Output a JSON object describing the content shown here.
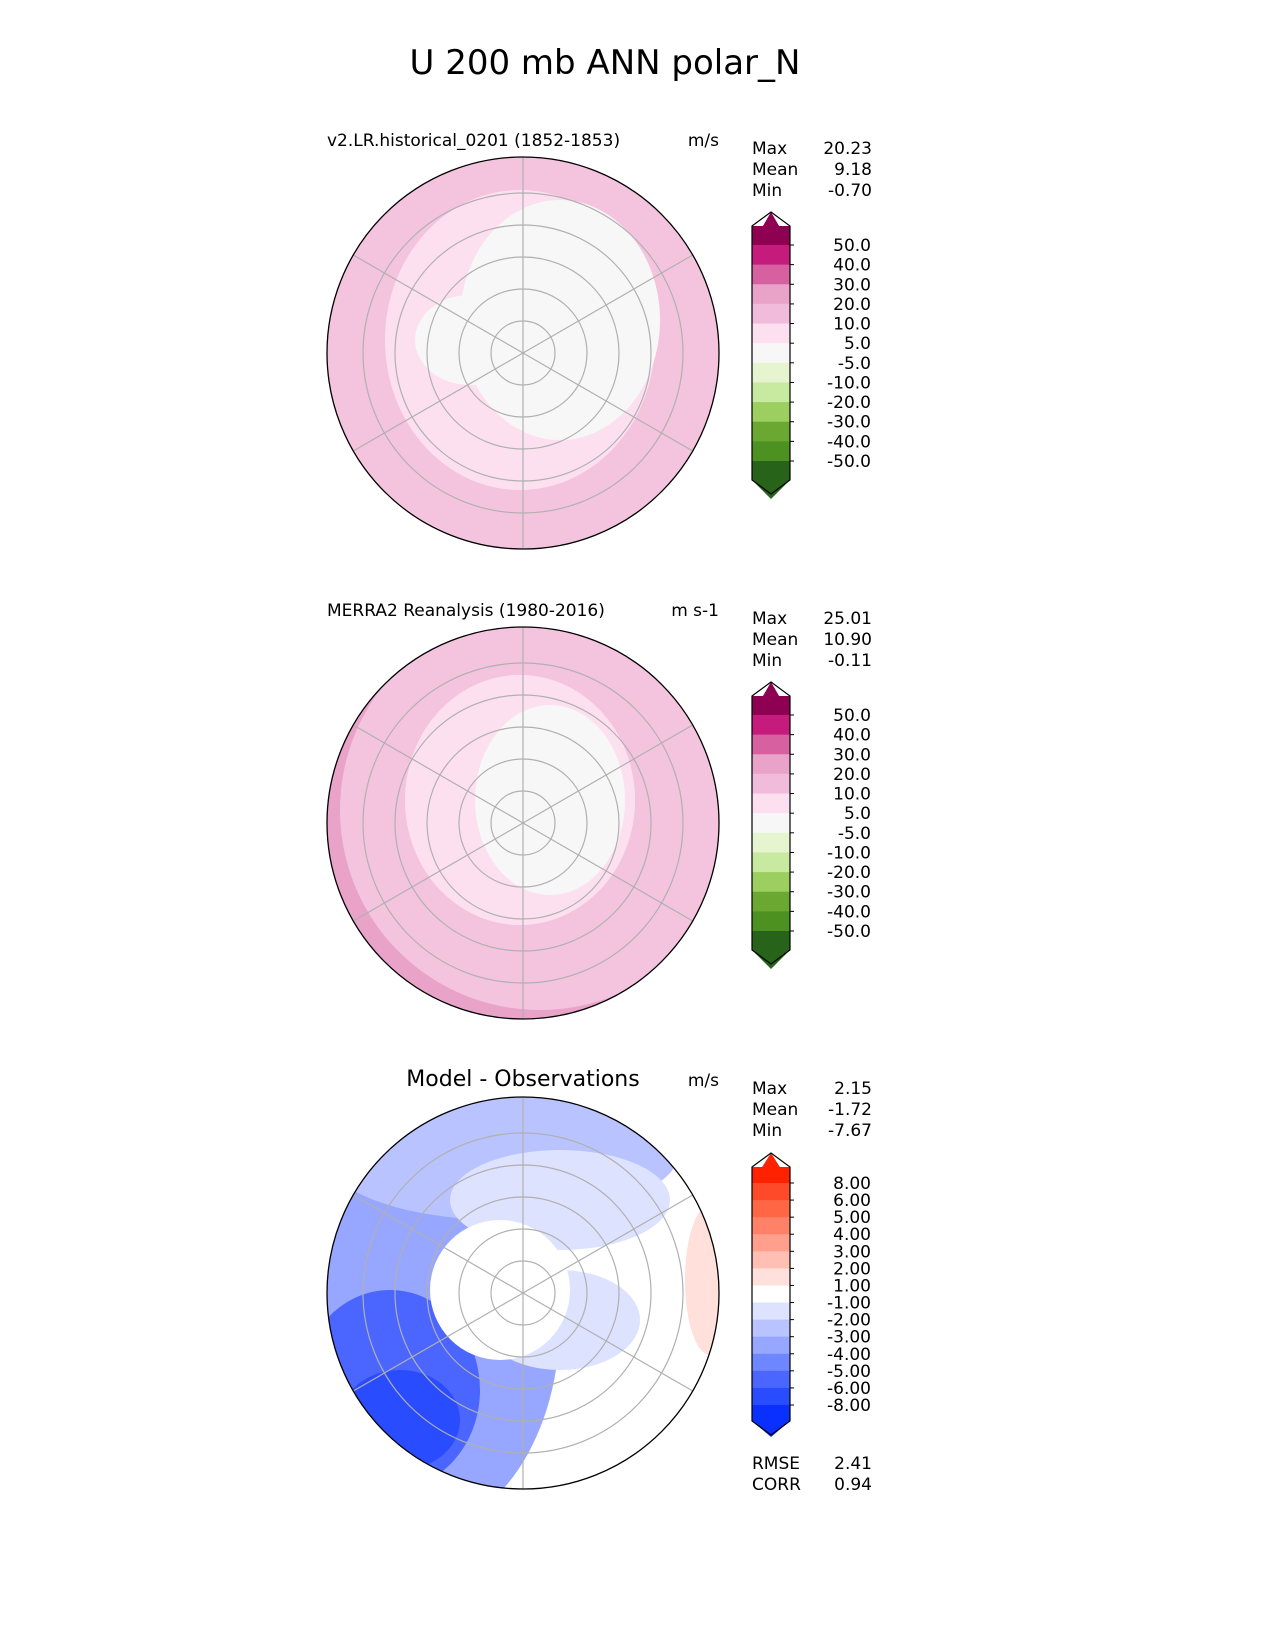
{
  "title": "U 200 mb ANN polar_N",
  "panels": [
    {
      "title": "v2.LR.historical_0201 (1852-1853)",
      "units": "m/s",
      "stats": [
        {
          "label": "Max",
          "value": "20.23"
        },
        {
          "label": "Mean",
          "value": "9.18"
        },
        {
          "label": "Min",
          "value": "-0.70"
        }
      ]
    },
    {
      "title": "MERRA2 Reanalysis (1980-2016)",
      "units": "m s-1",
      "stats": [
        {
          "label": "Max",
          "value": "25.01"
        },
        {
          "label": "Mean",
          "value": "10.90"
        },
        {
          "label": "Min",
          "value": "-0.11"
        }
      ]
    },
    {
      "title": "Model - Observations",
      "units": "m/s",
      "stats": [
        {
          "label": "Max",
          "value": "2.15"
        },
        {
          "label": "Mean",
          "value": "-1.72"
        },
        {
          "label": "Min",
          "value": "-7.67"
        }
      ],
      "extra": [
        {
          "label": "RMSE",
          "value": "2.41"
        },
        {
          "label": "CORR",
          "value": "0.94"
        }
      ]
    }
  ],
  "colorbars": {
    "main": {
      "levels": [
        "50.0",
        "40.0",
        "30.0",
        "20.0",
        "10.0",
        "5.0",
        "-5.0",
        "-10.0",
        "-20.0",
        "-30.0",
        "-40.0",
        "-50.0"
      ],
      "colors": [
        "#8e0152",
        "#c51b7d",
        "#d660a0",
        "#e9a3c9",
        "#f1bcdc",
        "#fde0ef",
        "#f7f7f7",
        "#e6f5d0",
        "#c7e9a0",
        "#9ccf5f",
        "#6aa832",
        "#4d9221",
        "#276419"
      ]
    },
    "diff": {
      "levels": [
        "8.00",
        "6.00",
        "5.00",
        "4.00",
        "3.00",
        "2.00",
        "1.00",
        "-1.00",
        "-2.00",
        "-3.00",
        "-4.00",
        "-5.00",
        "-6.00",
        "-8.00"
      ],
      "colors": [
        "#ff2200",
        "#ff4a2a",
        "#ff6644",
        "#ff8268",
        "#ff9f8c",
        "#ffbfb2",
        "#ffe0da",
        "#ffffff",
        "#dde2ff",
        "#b9c3ff",
        "#97a7ff",
        "#6e86ff",
        "#4a66ff",
        "#2a4cff",
        "#0a30ff"
      ]
    }
  }
}
